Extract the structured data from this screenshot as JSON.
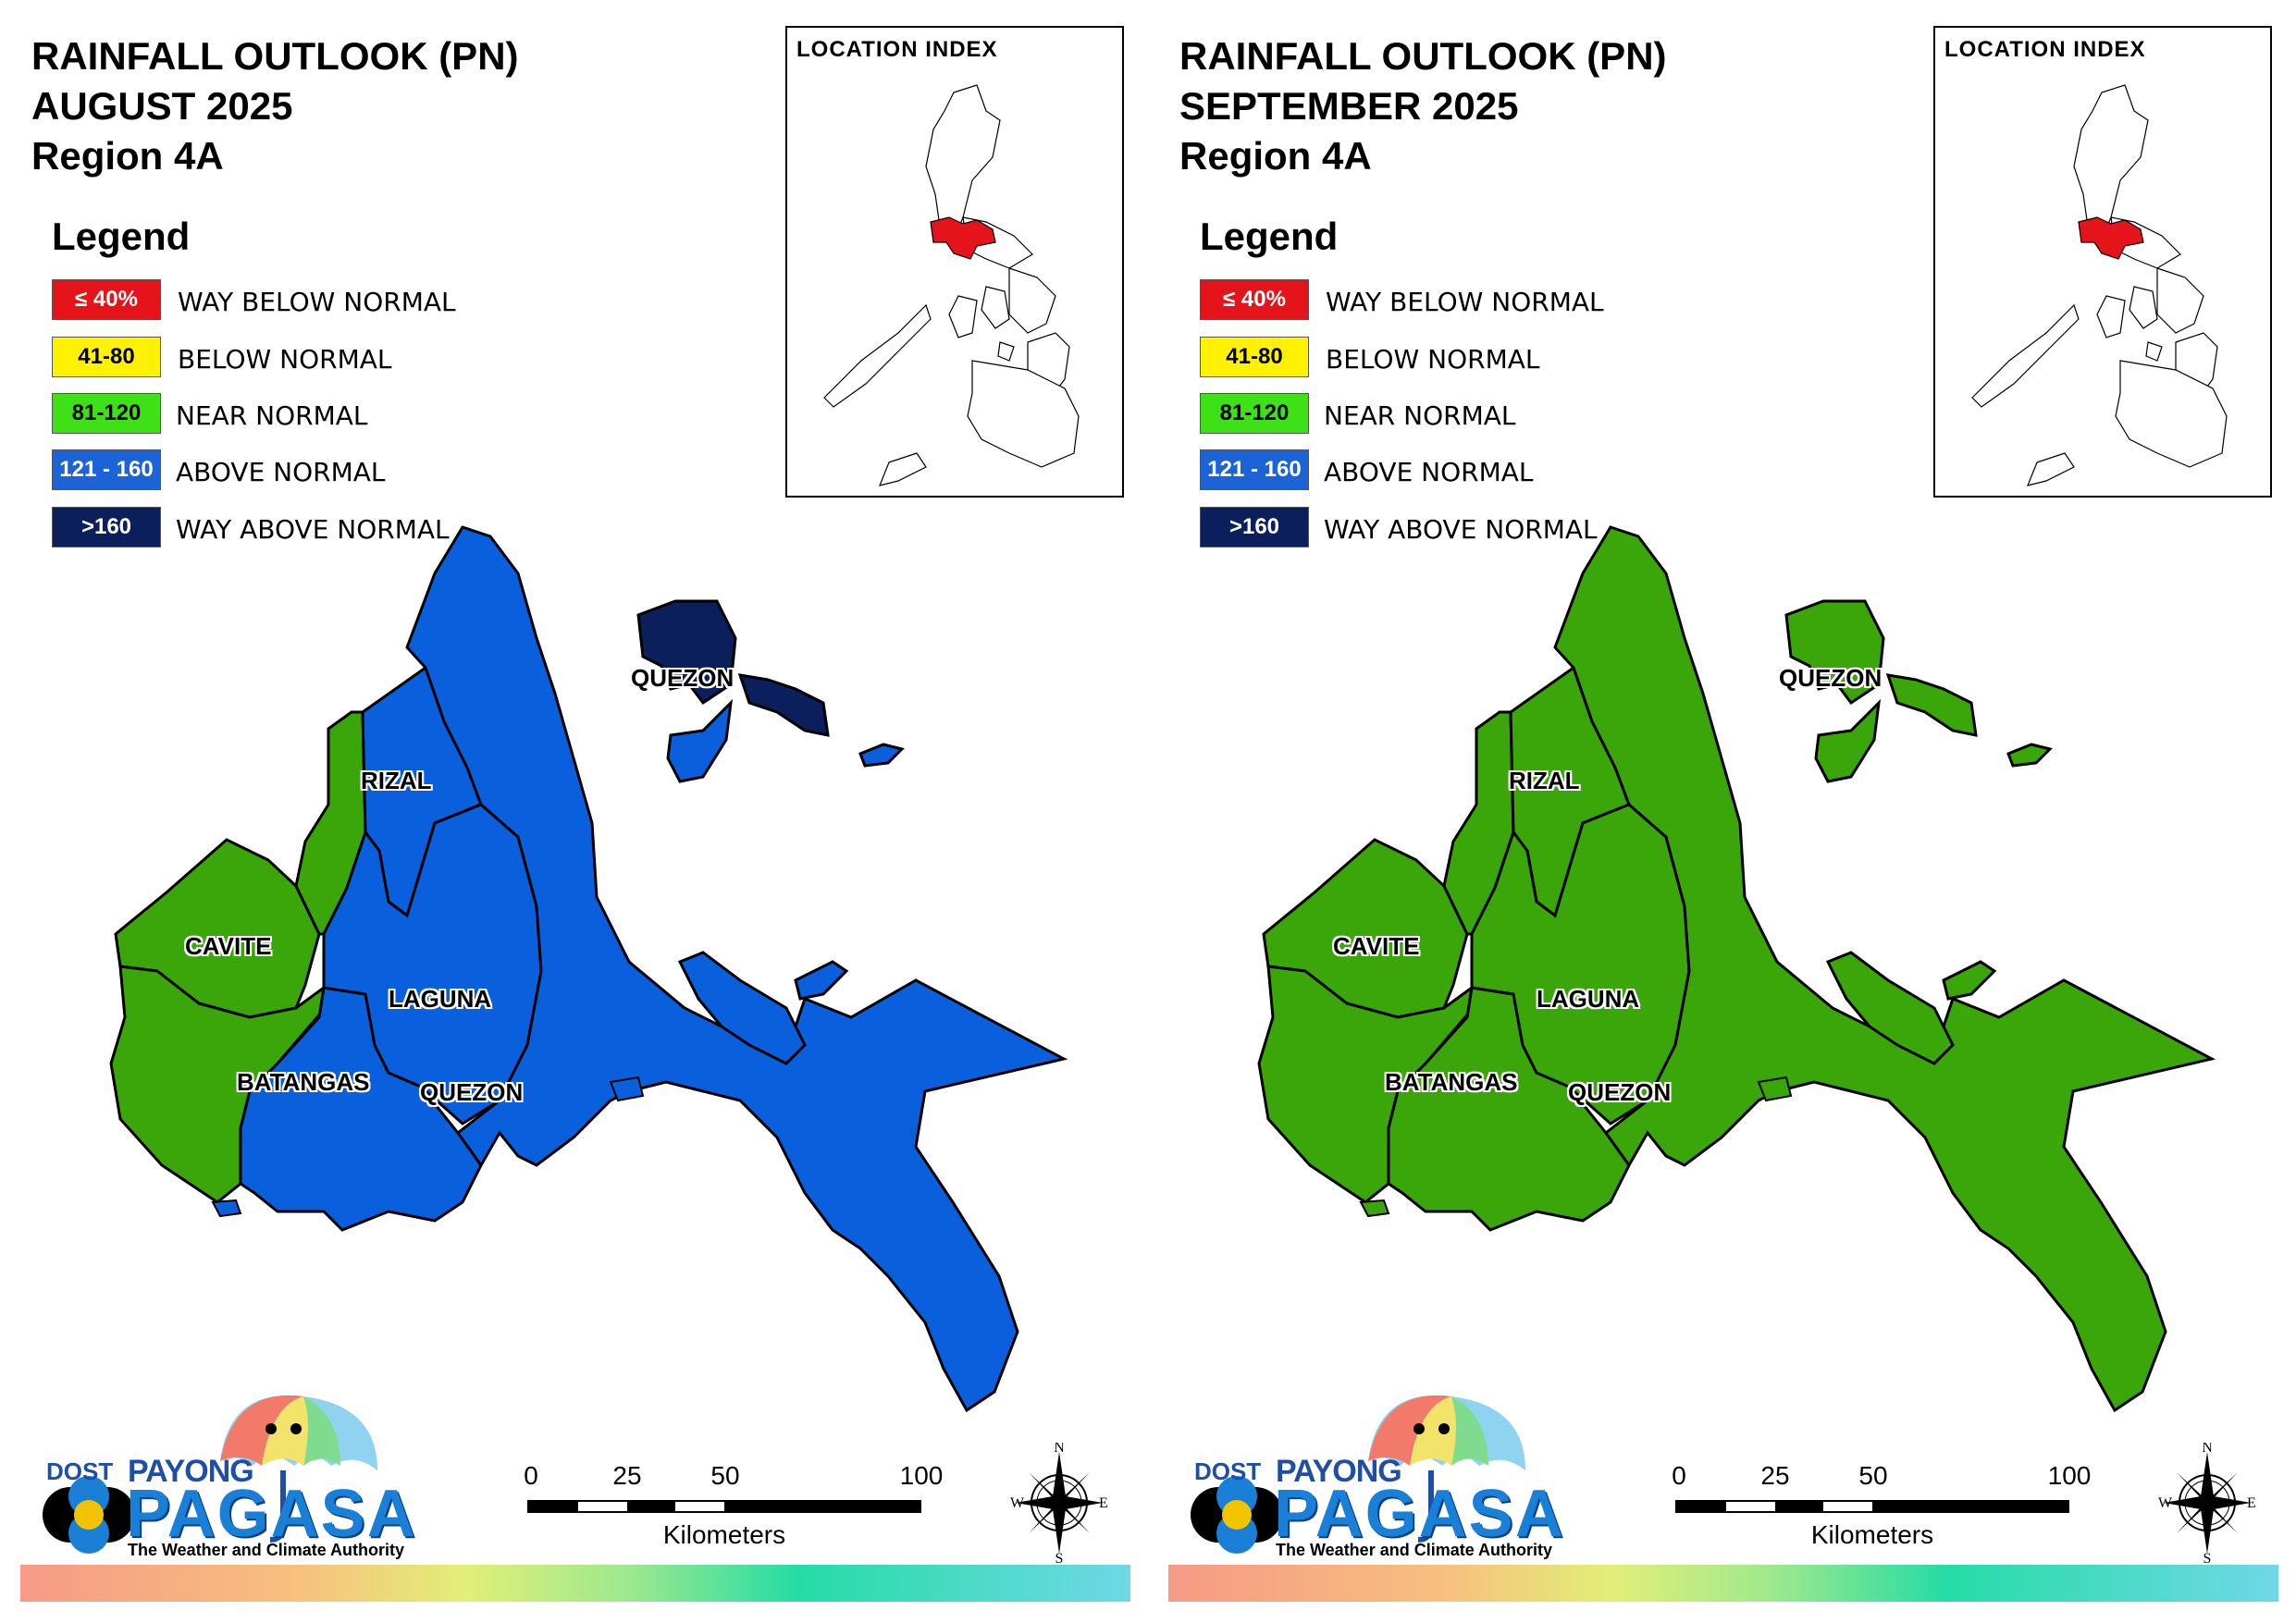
{
  "maps": [
    {
      "title_lines": [
        "RAINFALL OUTLOOK (PN)",
        "AUGUST 2025",
        "Region 4A"
      ],
      "region_colors": {
        "quezon_main": "#0a5fdc",
        "laguna": "#0a5fdc",
        "batangas_east": "#0a5fdc",
        "batangas_west": "#3aa60a",
        "cavite": "#3aa60a",
        "rizal_west_strip": "#3aa60a",
        "rizal": "#0a5fdc",
        "polillo": "#0a1f5c",
        "polillo_south": "#0a5fdc"
      }
    },
    {
      "title_lines": [
        "RAINFALL OUTLOOK (PN)",
        "SEPTEMBER 2025",
        "Region 4A"
      ],
      "region_colors": {
        "quezon_main": "#3aa60a",
        "laguna": "#3aa60a",
        "batangas_east": "#3aa60a",
        "batangas_west": "#3aa60a",
        "cavite": "#3aa60a",
        "rizal_west_strip": "#3aa60a",
        "rizal": "#3aa60a",
        "polillo": "#3aa60a",
        "polillo_south": "#3aa60a"
      }
    }
  ],
  "legend": {
    "heading": "Legend",
    "items": [
      {
        "range": "≤ 40%",
        "label": "WAY BELOW NORMAL",
        "color": "#e4141a",
        "text_color": "#ffffff"
      },
      {
        "range": "41-80",
        "label": "BELOW NORMAL",
        "color": "#fff200",
        "text_color": "#000000"
      },
      {
        "range": "81-120",
        "label": "NEAR NORMAL",
        "color": "#3ee016",
        "text_color": "#000000"
      },
      {
        "range": "121 - 160",
        "label": "ABOVE NORMAL",
        "color": "#1b63d6",
        "text_color": "#ffffff"
      },
      {
        "range": ">160",
        "label": "WAY ABOVE NORMAL",
        "color": "#0a1f5c",
        "text_color": "#ffffff"
      }
    ]
  },
  "location_index": {
    "title": "LOCATION INDEX",
    "highlight_color": "#e4141a"
  },
  "province_labels": {
    "quezon_north": "QUEZON",
    "rizal": "RIZAL",
    "cavite": "CAVITE",
    "laguna": "LAGUNA",
    "batangas": "BATANGAS",
    "quezon_south": "QUEZON"
  },
  "scale_bar": {
    "ticks": [
      "0",
      "25",
      "50",
      "100"
    ],
    "unit": "Kilometers"
  },
  "compass": {
    "n": "N",
    "e": "E",
    "s": "S",
    "w": "W",
    "icon": "compass-rose-icon"
  },
  "logo": {
    "dost": "DOST",
    "payong": "PAYONG",
    "pagasa": "PAGASA",
    "tagline": "The Weather and Climate Authority"
  }
}
